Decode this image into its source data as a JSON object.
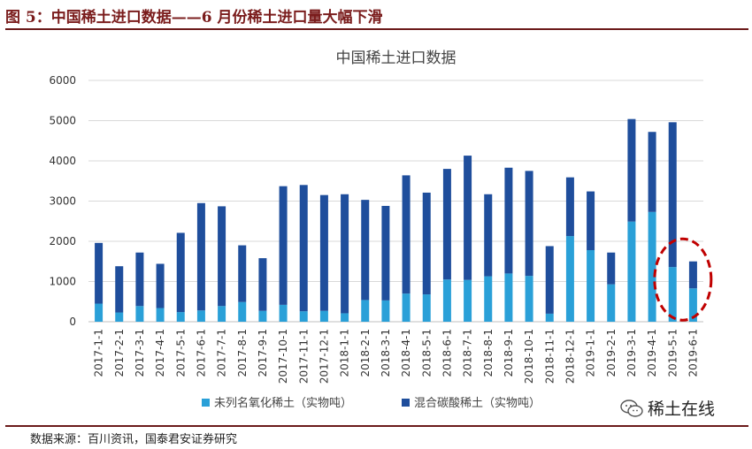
{
  "figure": {
    "title": "图 5：中国稀土进口数据——6 月份稀土进口量大幅下滑",
    "source": "数据来源：百川资讯，国泰君安证券研究",
    "watermark": "稀土在线"
  },
  "chart_data": {
    "type": "bar",
    "stacked": true,
    "title": "中国稀土进口数据",
    "categories": [
      "2017-1-1",
      "2017-2-1",
      "2017-3-1",
      "2017-4-1",
      "2017-5-1",
      "2017-6-1",
      "2017-7-1",
      "2017-8-1",
      "2017-9-1",
      "2017-10-1",
      "2017-11-1",
      "2017-12-1",
      "2018-1-1",
      "2018-2-1",
      "2018-3-1",
      "2018-4-1",
      "2018-5-1",
      "2018-6-1",
      "2018-7-1",
      "2018-8-1",
      "2018-9-1",
      "2018-10-1",
      "2018-11-1",
      "2018-12-1",
      "2019-1-1",
      "2019-2-1",
      "2019-3-1",
      "2019-4-1",
      "2019-5-1",
      "2019-6-1"
    ],
    "series": [
      {
        "name": "未列名氧化稀土（实物吨）",
        "color": "#2aa0d8",
        "values": [
          450,
          230,
          390,
          340,
          240,
          280,
          390,
          490,
          270,
          420,
          260,
          270,
          210,
          540,
          530,
          700,
          680,
          1050,
          1040,
          1130,
          1200,
          1140,
          200,
          2130,
          1780,
          930,
          2490,
          2730,
          1360,
          830
        ]
      },
      {
        "name": "混合碳酸稀土（实物吨）",
        "color": "#1f4e9c",
        "values": [
          1510,
          1150,
          1330,
          1100,
          1970,
          2670,
          2480,
          1410,
          1310,
          2950,
          3140,
          2880,
          2960,
          2490,
          2350,
          2940,
          2530,
          2750,
          3090,
          2040,
          2630,
          2610,
          1680,
          1460,
          1460,
          790,
          2550,
          1990,
          3600,
          670
        ]
      }
    ],
    "ylim": [
      0,
      6000
    ],
    "yticks": [
      0,
      1000,
      2000,
      3000,
      4000,
      5000,
      6000
    ],
    "grid": true,
    "legend": "bottom",
    "highlight_color": "#c00000"
  }
}
